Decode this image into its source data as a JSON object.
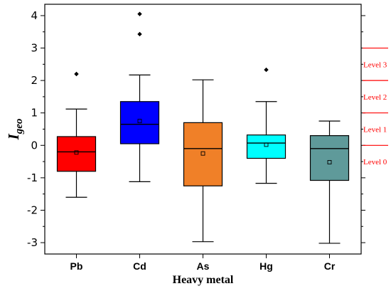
{
  "chart_data": {
    "type": "box",
    "xlabel": "Heavy metal",
    "ylabel_main": "I",
    "ylabel_sub": "geo",
    "ylim": [
      -3.35,
      4.35
    ],
    "yticks": [
      "-3",
      "-2",
      "-1",
      "0",
      "1",
      "2",
      "3",
      "4"
    ],
    "ytick_values": [
      -3,
      -2,
      -1,
      0,
      1,
      2,
      3,
      4
    ],
    "categories": [
      "Pb",
      "Cd",
      "As",
      "Hg",
      "Cr"
    ],
    "boxes": [
      {
        "name": "Pb",
        "color": "#ff0000",
        "whisker_low": -1.6,
        "q1": -0.8,
        "median": -0.2,
        "q3": 0.27,
        "whisker_high": 1.12,
        "mean": -0.22,
        "outliers": [
          2.2
        ]
      },
      {
        "name": "Cd",
        "color": "#0000ff",
        "whisker_low": -1.12,
        "q1": 0.05,
        "median": 0.65,
        "q3": 1.35,
        "whisker_high": 2.17,
        "mean": 0.75,
        "outliers": [
          3.43,
          4.05
        ]
      },
      {
        "name": "As",
        "color": "#f08028",
        "whisker_low": -2.97,
        "q1": -1.25,
        "median": -0.1,
        "q3": 0.7,
        "whisker_high": 2.02,
        "mean": -0.25,
        "outliers": []
      },
      {
        "name": "Hg",
        "color": "#00ffff",
        "whisker_low": -1.17,
        "q1": -0.4,
        "median": 0.07,
        "q3": 0.32,
        "whisker_high": 1.35,
        "mean": 0.02,
        "outliers": [
          2.33
        ]
      },
      {
        "name": "Cr",
        "color": "#5f9a9a",
        "whisker_low": -3.02,
        "q1": -1.08,
        "median": -0.1,
        "q3": 0.3,
        "whisker_high": 0.75,
        "mean": -0.52,
        "outliers": []
      }
    ],
    "level_lines": [
      0,
      1,
      2,
      3
    ],
    "levels": [
      {
        "label": "Level 0",
        "value": -0.5
      },
      {
        "label": "Level 1",
        "value": 0.5
      },
      {
        "label": "Level 2",
        "value": 1.5
      },
      {
        "label": "Level 3",
        "value": 2.5
      }
    ],
    "level_color": "#ff0000"
  }
}
